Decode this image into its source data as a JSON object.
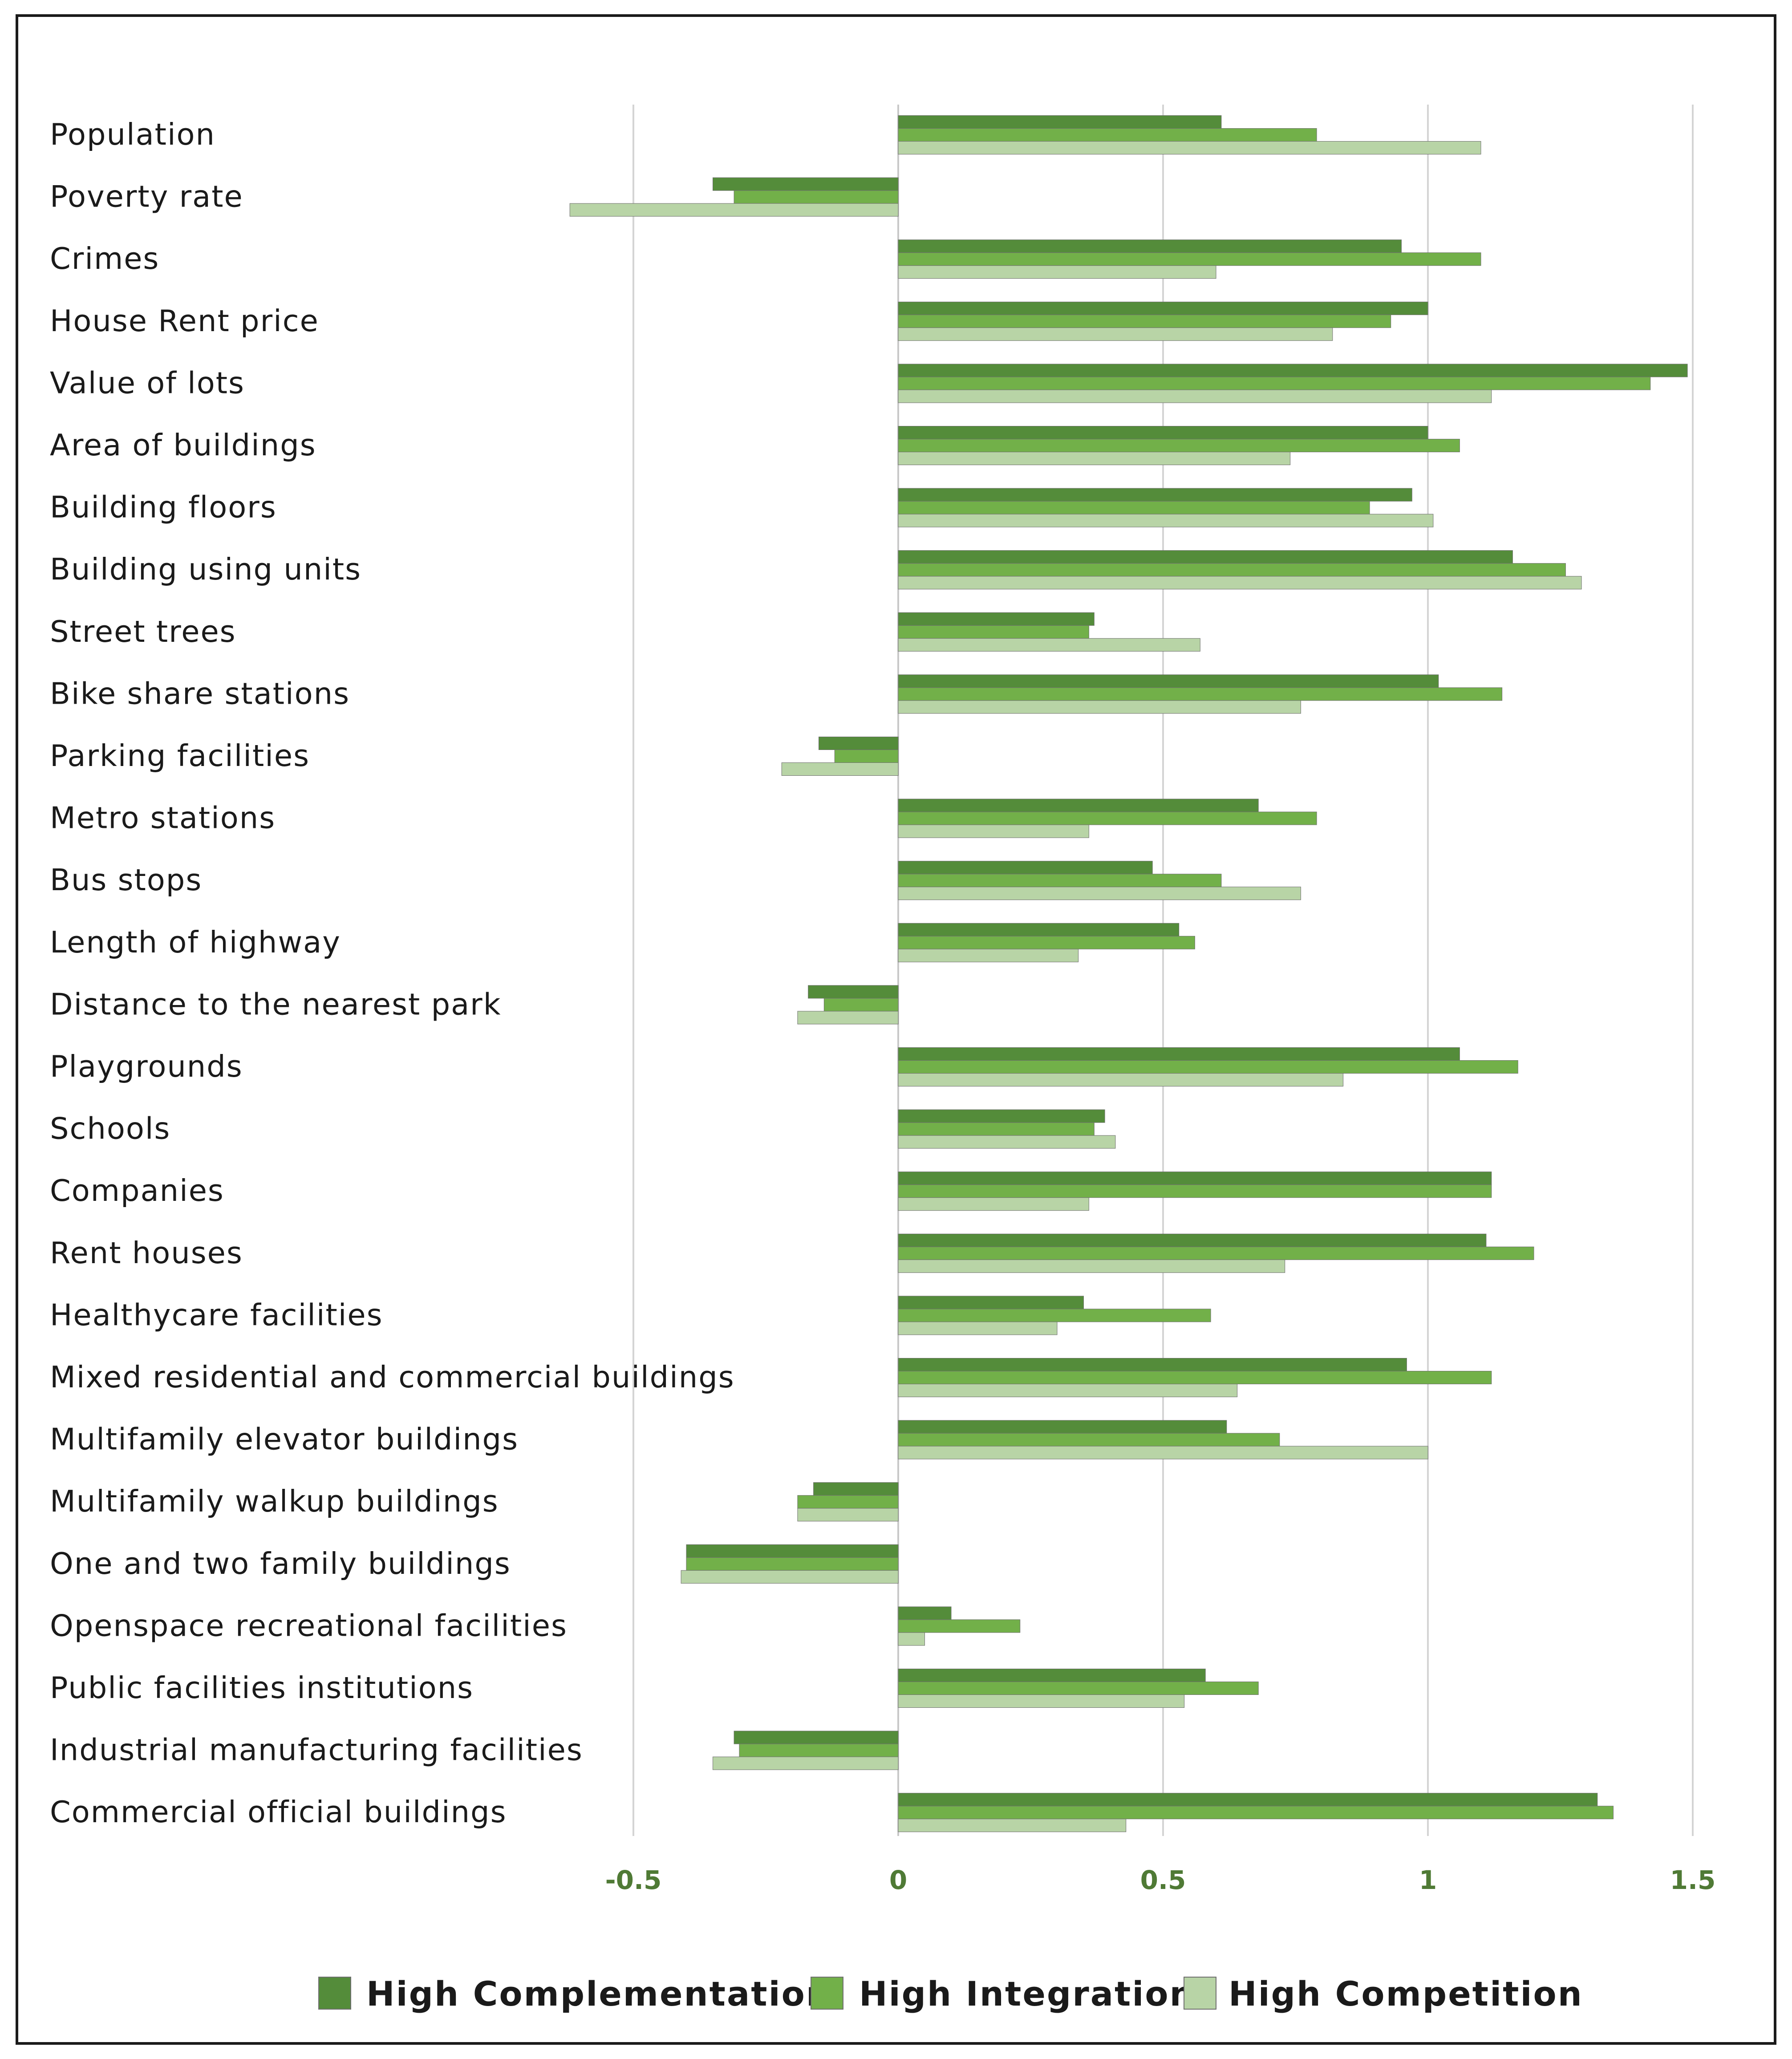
{
  "chart_data": {
    "type": "bar",
    "orientation": "horizontal",
    "title": "",
    "xlabel": "",
    "ylabel": "",
    "xlim": [
      -0.75,
      1.55
    ],
    "xticks": [
      -0.5,
      0,
      0.5,
      1,
      1.5
    ],
    "xtick_labels": [
      "-0.5",
      "0",
      "0.5",
      "1",
      "1.5"
    ],
    "grid": "vertical",
    "legend_position": "bottom",
    "categories": [
      "Population",
      "Poverty rate",
      "Crimes",
      "House Rent price",
      "Value of lots",
      "Area of buildings",
      "Building floors",
      "Building using units",
      "Street trees",
      "Bike share stations",
      "Parking facilities",
      "Metro stations",
      "Bus stops",
      "Length of highway",
      "Distance to the nearest park",
      "Playgrounds",
      "Schools",
      "Companies",
      "Rent houses",
      "Healthycare facilities",
      "Mixed residential and commercial buildings",
      "Multifamily elevator buildings",
      "Multifamily walkup buildings",
      "One and two family buildings",
      "Openspace recreational facilities",
      "Public facilities institutions",
      "Industrial manufacturing facilities",
      "Commercial official buildings"
    ],
    "series": [
      {
        "name": "High Complementation",
        "color": "#548c3a",
        "values": [
          0.61,
          -0.35,
          0.95,
          1.0,
          1.49,
          1.0,
          0.97,
          1.16,
          0.37,
          1.02,
          -0.15,
          0.68,
          0.48,
          0.53,
          -0.17,
          1.06,
          0.39,
          1.12,
          1.11,
          0.35,
          0.96,
          0.62,
          -0.16,
          -0.4,
          0.1,
          0.58,
          -0.31,
          1.32
        ]
      },
      {
        "name": "High Integration",
        "color": "#72b049",
        "values": [
          0.79,
          -0.31,
          1.1,
          0.93,
          1.42,
          1.06,
          0.89,
          1.26,
          0.36,
          1.14,
          -0.12,
          0.79,
          0.61,
          0.56,
          -0.14,
          1.17,
          0.37,
          1.12,
          1.2,
          0.59,
          1.12,
          0.72,
          -0.19,
          -0.4,
          0.23,
          0.68,
          -0.3,
          1.35
        ]
      },
      {
        "name": "High Competition",
        "color": "#b8d4a6",
        "values": [
          1.1,
          -0.62,
          0.6,
          0.82,
          1.12,
          0.74,
          1.01,
          1.29,
          0.57,
          0.76,
          -0.22,
          0.36,
          0.76,
          0.34,
          -0.19,
          0.84,
          0.41,
          0.36,
          0.73,
          0.3,
          0.64,
          1.0,
          -0.19,
          -0.41,
          0.05,
          0.54,
          -0.35,
          0.43
        ]
      }
    ]
  }
}
